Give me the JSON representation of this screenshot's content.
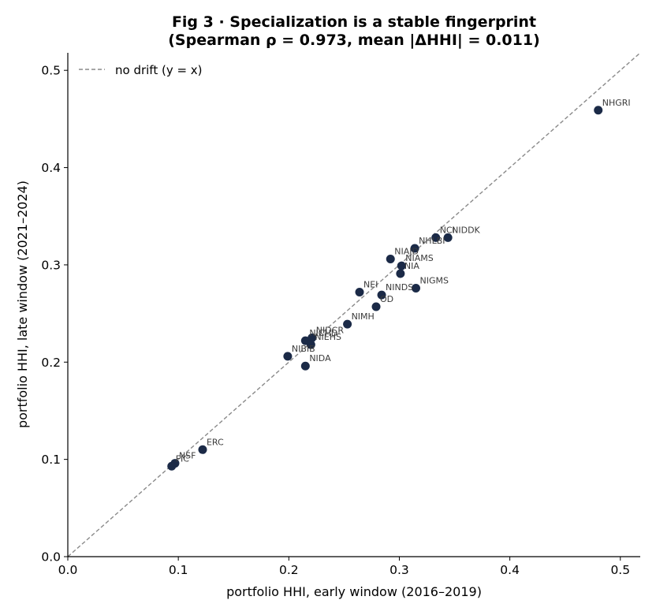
{
  "chart_data": {
    "type": "scatter",
    "title": "Fig 3 · Specialization is a stable fingerprint",
    "subtitle": "(Spearman ρ = 0.973, mean |ΔHHI| = 0.011)",
    "xlabel": "portfolio HHI, early window (2016–2019)",
    "ylabel": "portfolio HHI, late window (2021–2024)",
    "xlim": [
      0,
      0.518
    ],
    "ylim": [
      0,
      0.518
    ],
    "xticks": [
      0.0,
      0.1,
      0.2,
      0.3,
      0.4,
      0.5
    ],
    "yticks": [
      0.0,
      0.1,
      0.2,
      0.3,
      0.4,
      0.5
    ],
    "tick_labels": [
      "0.0",
      "0.1",
      "0.2",
      "0.3",
      "0.4",
      "0.5"
    ],
    "grid": false,
    "legend": {
      "placement": "upper-left",
      "entries": [
        {
          "label": "no drift (y = x)",
          "style": "dashed",
          "color": "#8a8a8a"
        }
      ]
    },
    "reference_line": {
      "type": "identity"
    },
    "marker_color": "#1b2a47",
    "points": [
      {
        "label": "NHGRI",
        "x": 0.48,
        "y": 0.459
      },
      {
        "label": "NCI",
        "x": 0.333,
        "y": 0.328
      },
      {
        "label": "NIDDK",
        "x": 0.344,
        "y": 0.328
      },
      {
        "label": "NHLBI",
        "x": 0.314,
        "y": 0.317
      },
      {
        "label": "NIAID",
        "x": 0.292,
        "y": 0.306
      },
      {
        "label": "NIAMS",
        "x": 0.302,
        "y": 0.299
      },
      {
        "label": "NIA",
        "x": 0.301,
        "y": 0.291
      },
      {
        "label": "NIGMS",
        "x": 0.315,
        "y": 0.276
      },
      {
        "label": "NEI",
        "x": 0.264,
        "y": 0.272
      },
      {
        "label": "NINDS",
        "x": 0.284,
        "y": 0.269
      },
      {
        "label": "OD",
        "x": 0.279,
        "y": 0.257
      },
      {
        "label": "NIMH",
        "x": 0.253,
        "y": 0.239
      },
      {
        "label": "NIDCR",
        "x": 0.221,
        "y": 0.225
      },
      {
        "label": "NICHD",
        "x": 0.215,
        "y": 0.222
      },
      {
        "label": "NIEHS",
        "x": 0.22,
        "y": 0.218
      },
      {
        "label": "NIBIB",
        "x": 0.199,
        "y": 0.206
      },
      {
        "label": "NIDA",
        "x": 0.215,
        "y": 0.196
      },
      {
        "label": "ERC",
        "x": 0.122,
        "y": 0.11
      },
      {
        "label": "NSF",
        "x": 0.097,
        "y": 0.096
      },
      {
        "label": "FIC",
        "x": 0.094,
        "y": 0.093
      }
    ]
  }
}
